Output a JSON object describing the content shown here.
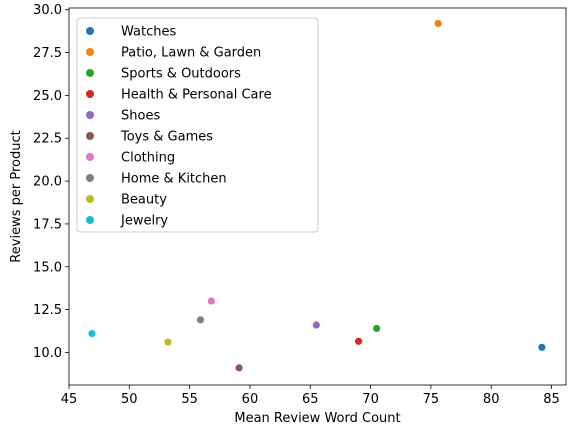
{
  "chart_data": {
    "type": "scatter",
    "title": "",
    "xlabel": "Mean Review Word Count",
    "ylabel": "Reviews per Product",
    "xlim": [
      45,
      86.2
    ],
    "ylim": [
      8.1,
      30.1
    ],
    "xticks": [
      45,
      50,
      55,
      60,
      65,
      70,
      75,
      80,
      85
    ],
    "yticks": [
      10.0,
      12.5,
      15.0,
      17.5,
      20.0,
      22.5,
      25.0,
      27.5,
      30.0
    ],
    "xtick_labels": [
      "45",
      "50",
      "55",
      "60",
      "65",
      "70",
      "75",
      "80",
      "85"
    ],
    "ytick_labels": [
      "10.0",
      "12.5",
      "15.0",
      "17.5",
      "20.0",
      "22.5",
      "25.0",
      "27.5",
      "30.0"
    ],
    "grid": false,
    "legend_position": "upper-left",
    "series": [
      {
        "name": "Watches",
        "color": "#1f77b4",
        "x": [
          84.2
        ],
        "y": [
          10.3
        ]
      },
      {
        "name": "Patio, Lawn & Garden",
        "color": "#ff7f0e",
        "x": [
          75.6
        ],
        "y": [
          29.2
        ]
      },
      {
        "name": "Sports & Outdoors",
        "color": "#2ca02c",
        "x": [
          70.5
        ],
        "y": [
          11.4
        ]
      },
      {
        "name": "Health & Personal Care",
        "color": "#d62728",
        "x": [
          69.0
        ],
        "y": [
          10.65
        ]
      },
      {
        "name": "Shoes",
        "color": "#9467bd",
        "x": [
          65.5
        ],
        "y": [
          11.6
        ]
      },
      {
        "name": "Toys & Games",
        "color": "#8c564b",
        "x": [
          59.1
        ],
        "y": [
          9.1
        ]
      },
      {
        "name": "Clothing",
        "color": "#e377c2",
        "x": [
          56.8
        ],
        "y": [
          13.0
        ]
      },
      {
        "name": "Home & Kitchen",
        "color": "#7f7f7f",
        "x": [
          55.9
        ],
        "y": [
          11.9
        ]
      },
      {
        "name": "Beauty",
        "color": "#bcbd22",
        "x": [
          53.2
        ],
        "y": [
          10.6
        ]
      },
      {
        "name": "Jewelry",
        "color": "#17becf",
        "x": [
          46.9
        ],
        "y": [
          11.1
        ]
      }
    ]
  }
}
